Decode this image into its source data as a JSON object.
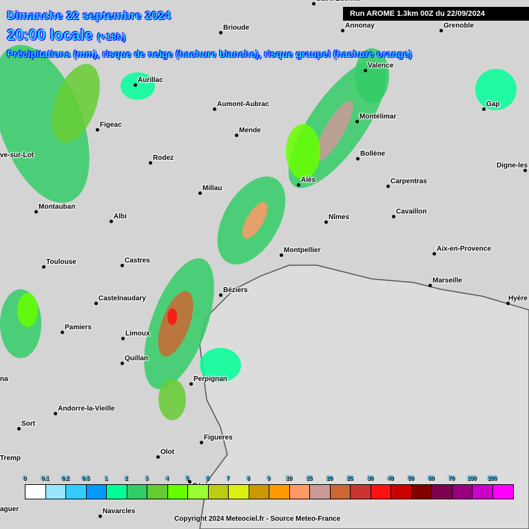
{
  "header": {
    "date": "Dimanche 22 septembre 2024",
    "time": "20:00 locale",
    "lead": "(+18h)",
    "subtitle": "Précipitations (mm), risque de neige (hachure blanche), risque graupel (hachure orange)",
    "run": "Run AROME 1.3km 00Z du 22/09/2024"
  },
  "cities": [
    "Saint-Etienne",
    "Annonay",
    "Grenoble",
    "Brioude",
    "Valence",
    "Aurillac",
    "Aumont-Aubrac",
    "Gap",
    "Montélimar",
    "Figeac",
    "Mende",
    "Bollène",
    "Rodez",
    "Digne-les",
    "Alès",
    "Carpentras",
    "Millau",
    "ve-sur-Lot",
    "Montauban",
    "Albi",
    "Nîmes",
    "Cavaillon",
    "Montpellier",
    "Aix-en-Provence",
    "Toulouse",
    "Castres",
    "Marseille",
    "Béziers",
    "Hyère",
    "Castelnaudary",
    "Pamiers",
    "Limoux",
    "Quillan",
    "Perpignan",
    "na",
    "Andorre-la-Vieille",
    "Sort",
    "Figueres",
    "Olot",
    "Tremp",
    "Gérone",
    "aguer",
    "Navarcles"
  ],
  "legend": {
    "labels": [
      "0",
      "0.1",
      "0.2",
      "0.5",
      "1",
      "2",
      "3",
      "4",
      "5",
      "6",
      "7",
      "8",
      "9",
      "10",
      "15",
      "20",
      "25",
      "30",
      "40",
      "50",
      "60",
      "70",
      "100",
      "200"
    ],
    "colors": [
      "#ffffff",
      "#99e6ff",
      "#33ccff",
      "#0099ff",
      "#00ff99",
      "#33cc66",
      "#66cc33",
      "#66ff00",
      "#99ff33",
      "#bbcc11",
      "#ddee11",
      "#cc9900",
      "#ff9900",
      "#ff9966",
      "#cc9999",
      "#cc6633",
      "#cc3333",
      "#ff1111",
      "#cc0000",
      "#800000",
      "#800050",
      "#990080",
      "#cc00cc",
      "#ff00ff"
    ]
  },
  "copyright": "Copyright 2024 Meteociel.fr - Source Meteo-France"
}
